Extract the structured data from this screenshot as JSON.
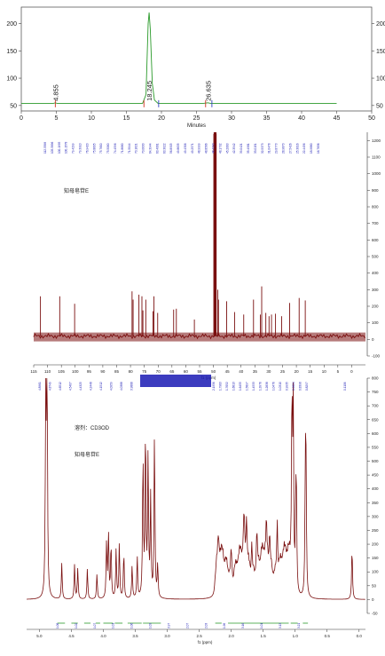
{
  "chart_data": [
    {
      "type": "line",
      "xlabel": "Minutes",
      "xlim": [
        0,
        50
      ],
      "ylim": [
        40,
        230
      ],
      "x_ticks": [
        0,
        5,
        10,
        15,
        20,
        25,
        30,
        35,
        40,
        45,
        50
      ],
      "y_ticks_left": [
        50,
        100,
        150,
        200
      ],
      "y_ticks_right": [
        50,
        100,
        150,
        200
      ],
      "grid": false,
      "series": [
        {
          "color": "#2a9a2a",
          "x": [
            0,
            4.6,
            4.855,
            5.1,
            9,
            17.3,
            17.8,
            18.1,
            18.245,
            18.4,
            18.7,
            19.0,
            19.5,
            26,
            26.635,
            27,
            45
          ],
          "y": [
            54,
            54,
            55,
            54,
            54,
            54,
            70,
            200,
            220,
            190,
            90,
            60,
            54,
            54,
            55,
            54,
            54
          ]
        }
      ],
      "peak_labels": [
        {
          "x": 4.855,
          "text": "4.855"
        },
        {
          "x": 18.245,
          "text": "18.245"
        },
        {
          "x": 26.635,
          "text": "26.635"
        }
      ],
      "markers": [
        {
          "x": 4.855,
          "color": "#d03020"
        },
        {
          "x": 17.5,
          "color": "#d03020"
        },
        {
          "x": 19.6,
          "color": "#3040c0"
        },
        {
          "x": 26.3,
          "color": "#d03020"
        },
        {
          "x": 27.2,
          "color": "#3040c0"
        }
      ]
    },
    {
      "type": "line",
      "title": "知母皂苷E",
      "xlabel": "f1 (ppm)",
      "xlim": [
        115,
        -5
      ],
      "ylim": [
        -100,
        1250
      ],
      "x_ticks": [
        115,
        110,
        105,
        100,
        95,
        90,
        85,
        80,
        75,
        70,
        65,
        60,
        55,
        50,
        45,
        40,
        35,
        30,
        25,
        20,
        15,
        10,
        5,
        0
      ],
      "y_ticks": [
        -100,
        0,
        100,
        200,
        300,
        400,
        500,
        600,
        700,
        800,
        900,
        1000,
        1100,
        1200
      ],
      "color": "#7a0f0f",
      "peak_list": [
        "112.5598",
        "105.5896",
        "100.1995",
        "100.1578",
        "79.4299",
        "79.3910",
        "76.9420",
        "75.8605",
        "75.7800",
        "75.5060",
        "74.4596",
        "71.8680",
        "71.5044",
        "70.1621",
        "70.0630",
        "64.3944",
        "63.4061",
        "63.3022",
        "56.8905",
        "49.8635",
        "49.4306",
        "49.2571",
        "48.9999",
        "48.8566",
        "48.4290",
        "48.1732",
        "45.2063",
        "42.3542",
        "39.0421",
        "35.4981",
        "33.0151",
        "32.5373",
        "31.0478",
        "29.8773",
        "28.9870",
        "27.5426",
        "25.3016",
        "22.4456",
        "18.9880",
        "16.7836"
      ],
      "peaks": [
        {
          "x": 112.56,
          "y": 260
        },
        {
          "x": 105.59,
          "y": 260
        },
        {
          "x": 100.2,
          "y": 215
        },
        {
          "x": 79.43,
          "y": 290
        },
        {
          "x": 79.05,
          "y": 240
        },
        {
          "x": 76.94,
          "y": 270
        },
        {
          "x": 75.86,
          "y": 260
        },
        {
          "x": 75.5,
          "y": 175
        },
        {
          "x": 74.46,
          "y": 240
        },
        {
          "x": 71.87,
          "y": 170
        },
        {
          "x": 71.5,
          "y": 260
        },
        {
          "x": 70.16,
          "y": 160
        },
        {
          "x": 64.39,
          "y": 180
        },
        {
          "x": 63.41,
          "y": 185
        },
        {
          "x": 56.89,
          "y": 120
        },
        {
          "x": 49.86,
          "y": 1240
        },
        {
          "x": 49.43,
          "y": 1240
        },
        {
          "x": 49.0,
          "y": 1240
        },
        {
          "x": 48.43,
          "y": 300
        },
        {
          "x": 48.17,
          "y": 240
        },
        {
          "x": 45.21,
          "y": 230
        },
        {
          "x": 42.35,
          "y": 165
        },
        {
          "x": 39.04,
          "y": 150
        },
        {
          "x": 35.5,
          "y": 240
        },
        {
          "x": 33.02,
          "y": 150
        },
        {
          "x": 32.54,
          "y": 320
        },
        {
          "x": 31.05,
          "y": 160
        },
        {
          "x": 29.88,
          "y": 140
        },
        {
          "x": 28.99,
          "y": 150
        },
        {
          "x": 27.54,
          "y": 155
        },
        {
          "x": 25.3,
          "y": 140
        },
        {
          "x": 22.45,
          "y": 220
        },
        {
          "x": 18.99,
          "y": 250
        },
        {
          "x": 16.78,
          "y": 235
        }
      ]
    },
    {
      "type": "line",
      "title": "知母皂苷E",
      "subtitle": "溶剂：CD3OD",
      "xlabel": "f1 (ppm)",
      "xlim": [
        5.2,
        -0.1
      ],
      "ylim": [
        -50,
        800
      ],
      "x_ticks": [
        5.0,
        4.5,
        4.0,
        3.5,
        3.0,
        2.5,
        2.0,
        1.5,
        1.0,
        0.5,
        0.0
      ],
      "x_tick_labels": [
        "5.0",
        "4.5",
        "4.0",
        "3.5",
        "3.0",
        "2.5",
        "2.0",
        "1.5",
        "1.0",
        "0.5",
        "0.0"
      ],
      "y_ticks": [
        -50,
        0,
        50,
        100,
        150,
        200,
        250,
        300,
        350,
        400,
        450,
        500,
        550,
        600,
        650,
        700,
        750,
        800
      ],
      "color": "#7a0f0f",
      "peak_list_left": [
        "4.8961",
        "4.8749",
        "4.6512",
        "4.5407",
        "4.4325",
        "4.2448",
        "4.1512",
        "4.0959",
        "4.0388",
        "3.9888"
      ],
      "peak_list_center_label": "3.8~3.2 multiplet region",
      "peak_list_right": [
        "2.1956",
        "1.7983",
        "1.7652",
        "1.6813",
        "1.6455",
        "1.5897",
        "1.4533",
        "1.3976",
        "1.2838",
        "1.0476",
        "1.0310",
        "0.9935",
        "0.9824",
        "0.8398",
        "0.8297",
        "0.1106"
      ],
      "peaks": [
        {
          "x": 4.9,
          "y": 800
        },
        {
          "x": 4.88,
          "y": 800
        },
        {
          "x": 4.65,
          "y": 130
        },
        {
          "x": 4.45,
          "y": 125
        },
        {
          "x": 4.4,
          "y": 110
        },
        {
          "x": 4.25,
          "y": 110
        },
        {
          "x": 4.1,
          "y": 90
        },
        {
          "x": 3.95,
          "y": 200
        },
        {
          "x": 3.92,
          "y": 235
        },
        {
          "x": 3.88,
          "y": 200
        },
        {
          "x": 3.8,
          "y": 180
        },
        {
          "x": 3.75,
          "y": 200
        },
        {
          "x": 3.68,
          "y": 170
        },
        {
          "x": 3.55,
          "y": 120
        },
        {
          "x": 3.47,
          "y": 150
        },
        {
          "x": 3.38,
          "y": 520
        },
        {
          "x": 3.34,
          "y": 620
        },
        {
          "x": 3.3,
          "y": 520
        },
        {
          "x": 3.26,
          "y": 360
        },
        {
          "x": 3.2,
          "y": 600
        },
        {
          "x": 3.15,
          "y": 120
        },
        {
          "x": 2.2,
          "y": 70
        },
        {
          "x": 2.0,
          "y": 90
        },
        {
          "x": 1.8,
          "y": 140
        },
        {
          "x": 1.76,
          "y": 160
        },
        {
          "x": 1.68,
          "y": 120
        },
        {
          "x": 1.6,
          "y": 140
        },
        {
          "x": 1.45,
          "y": 110
        },
        {
          "x": 1.4,
          "y": 120
        },
        {
          "x": 1.28,
          "y": 200
        },
        {
          "x": 1.05,
          "y": 700
        },
        {
          "x": 1.03,
          "y": 660
        },
        {
          "x": 0.99,
          "y": 290
        },
        {
          "x": 0.98,
          "y": 270
        },
        {
          "x": 0.84,
          "y": 420
        },
        {
          "x": 0.83,
          "y": 400
        },
        {
          "x": 0.11,
          "y": 190
        }
      ],
      "integral_labels": [
        "1.06",
        "1.02",
        "1.07",
        "1.01",
        "1.06",
        "1.03",
        "3.97",
        "2.07",
        "2.03",
        "1.96",
        "3.16",
        "1.01",
        "3.13",
        "3.21"
      ]
    }
  ]
}
